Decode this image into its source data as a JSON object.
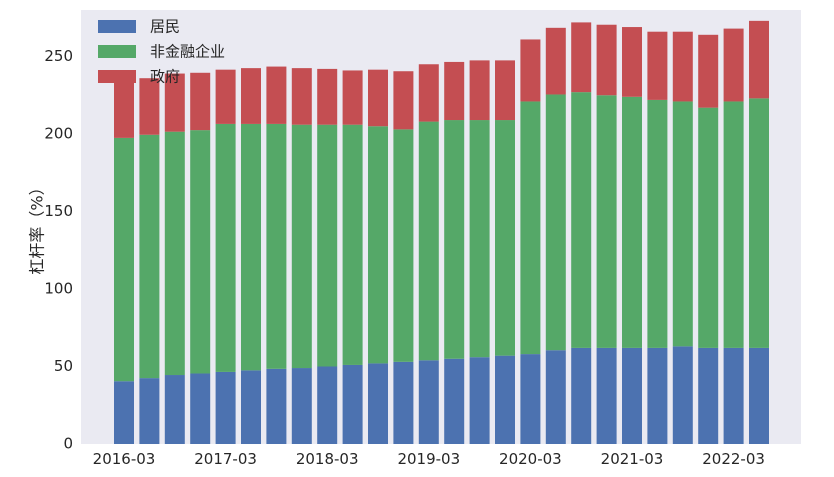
{
  "chart_data": {
    "type": "bar",
    "stacked": true,
    "title": "",
    "xlabel": "",
    "ylabel": "杠杆率（%）",
    "ylim": [
      0,
      280
    ],
    "yticks": [
      0,
      50,
      100,
      150,
      200,
      250
    ],
    "grid": false,
    "legend_position": "top-left",
    "x_tick_labels": [
      "2016-03",
      "2017-03",
      "2018-03",
      "2019-03",
      "2020-03",
      "2021-03",
      "2022-03"
    ],
    "categories": [
      "2016-03",
      "2016-06",
      "2016-09",
      "2016-12",
      "2017-03",
      "2017-06",
      "2017-09",
      "2017-12",
      "2018-03",
      "2018-06",
      "2018-09",
      "2018-12",
      "2019-03",
      "2019-06",
      "2019-09",
      "2019-12",
      "2020-03",
      "2020-06",
      "2020-09",
      "2020-12",
      "2021-03",
      "2021-06",
      "2021-09",
      "2021-12",
      "2022-03",
      "2022-06"
    ],
    "series": [
      {
        "name": "居民",
        "color": "#4c72b0",
        "values": [
          40.5,
          42.5,
          44.5,
          45.5,
          46.5,
          47.5,
          48.5,
          49,
          50,
          51,
          52,
          53,
          54,
          55,
          56,
          57,
          58,
          60.5,
          62,
          62,
          62,
          62,
          63,
          62,
          62,
          62
        ]
      },
      {
        "name": "非金融企业",
        "color": "#55a868",
        "values": [
          157,
          157,
          157,
          157,
          160,
          159,
          158,
          157,
          156,
          155,
          153,
          150,
          154,
          154,
          153,
          152,
          163,
          165,
          165,
          163,
          162,
          160,
          158,
          155,
          159,
          161
        ]
      },
      {
        "name": "政府",
        "color": "#c44e52",
        "values": [
          35.5,
          36.5,
          37.5,
          37,
          35,
          36,
          37,
          36.5,
          36,
          35,
          36.5,
          37.5,
          37,
          37.5,
          38.5,
          38.5,
          40,
          43,
          45,
          45.5,
          45,
          44,
          45,
          47,
          47,
          50
        ]
      }
    ]
  }
}
